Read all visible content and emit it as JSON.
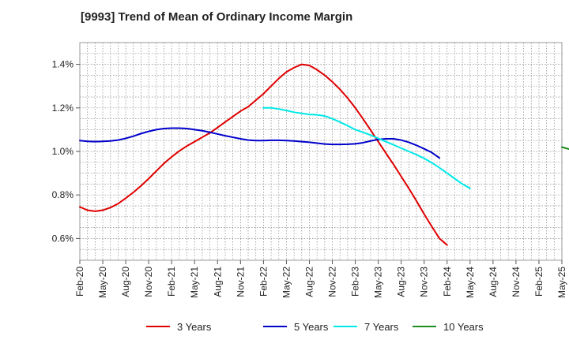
{
  "chart_data": {
    "type": "line",
    "title": "[9993]  Trend of Mean of Ordinary Income Margin",
    "xlabel": "",
    "ylabel": "",
    "x_tick_labels": [
      "Feb-20",
      "May-20",
      "Aug-20",
      "Nov-20",
      "Feb-21",
      "May-21",
      "Aug-21",
      "Nov-21",
      "Feb-22",
      "May-22",
      "Aug-22",
      "Nov-22",
      "Feb-23",
      "May-23",
      "Aug-23",
      "Nov-23",
      "Feb-24",
      "May-24",
      "Aug-24",
      "Nov-24",
      "Feb-25",
      "May-25"
    ],
    "y_ticks": [
      0.6,
      0.8,
      1.0,
      1.2,
      1.4
    ],
    "y_tick_labels": [
      "0.6%",
      "0.8%",
      "1.0%",
      "1.2%",
      "1.4%"
    ],
    "ylim": [
      0.5,
      1.5
    ],
    "grid": true,
    "legend_position": "bottom",
    "series": [
      {
        "name": "3 Years",
        "color": "#e00000",
        "start_index": 0,
        "values": [
          0.745,
          0.73,
          0.725,
          0.73,
          0.742,
          0.76,
          0.785,
          0.812,
          0.842,
          0.875,
          0.91,
          0.945,
          0.975,
          1.002,
          1.025,
          1.045,
          1.065,
          1.085,
          1.11,
          1.135,
          1.16,
          1.185,
          1.205,
          1.235,
          1.265,
          1.3,
          1.335,
          1.365,
          1.385,
          1.4,
          1.395,
          1.375,
          1.35,
          1.32,
          1.285,
          1.245,
          1.2,
          1.15,
          1.098,
          1.045,
          0.992,
          0.94,
          0.885,
          0.83,
          0.772,
          0.712,
          0.655,
          0.6,
          0.57
        ]
      },
      {
        "name": "5 Years",
        "color": "#0000cc",
        "start_index": 0,
        "values": [
          1.05,
          1.046,
          1.045,
          1.046,
          1.048,
          1.052,
          1.06,
          1.07,
          1.082,
          1.092,
          1.1,
          1.105,
          1.107,
          1.107,
          1.105,
          1.1,
          1.095,
          1.088,
          1.08,
          1.072,
          1.065,
          1.058,
          1.052,
          1.05,
          1.05,
          1.051,
          1.051,
          1.05,
          1.048,
          1.045,
          1.042,
          1.038,
          1.034,
          1.032,
          1.032,
          1.033,
          1.035,
          1.04,
          1.048,
          1.055,
          1.058,
          1.058,
          1.052,
          1.042,
          1.028,
          1.012,
          0.995,
          0.97
        ]
      },
      {
        "name": "7 Years",
        "color": "#00e8e8",
        "start_index": 24,
        "values": [
          1.2,
          1.2,
          1.195,
          1.188,
          1.18,
          1.175,
          1.17,
          1.168,
          1.163,
          1.15,
          1.135,
          1.118,
          1.1,
          1.088,
          1.075,
          1.06,
          1.045,
          1.03,
          1.015,
          1.0,
          0.985,
          0.968,
          0.948,
          0.925,
          0.9,
          0.875,
          0.85,
          0.83
        ]
      },
      {
        "name": "10 Years",
        "color": "#1e8c1e",
        "start_index": 63,
        "values": [
          1.02,
          1.01
        ]
      }
    ]
  }
}
